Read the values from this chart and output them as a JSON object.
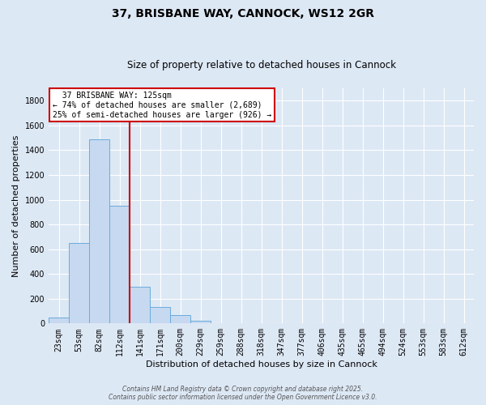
{
  "title": "37, BRISBANE WAY, CANNOCK, WS12 2GR",
  "subtitle": "Size of property relative to detached houses in Cannock",
  "xlabel": "Distribution of detached houses by size in Cannock",
  "ylabel": "Number of detached properties",
  "bar_labels": [
    "23sqm",
    "53sqm",
    "82sqm",
    "112sqm",
    "141sqm",
    "171sqm",
    "200sqm",
    "229sqm",
    "259sqm",
    "288sqm",
    "318sqm",
    "347sqm",
    "377sqm",
    "406sqm",
    "435sqm",
    "465sqm",
    "494sqm",
    "524sqm",
    "553sqm",
    "583sqm",
    "612sqm"
  ],
  "bar_values": [
    45,
    650,
    1490,
    950,
    295,
    135,
    65,
    20,
    5,
    2,
    0,
    0,
    0,
    0,
    0,
    0,
    0,
    0,
    0,
    0,
    0
  ],
  "bar_color": "#c6d9f0",
  "bar_edge_color": "#6aabdb",
  "vline_x": 3,
  "vline_color": "#cc0000",
  "annotation_title": "37 BRISBANE WAY: 125sqm",
  "annotation_line1": "← 74% of detached houses are smaller (2,689)",
  "annotation_line2": "25% of semi-detached houses are larger (926) →",
  "annotation_box_color": "#cc0000",
  "ylim": [
    0,
    1900
  ],
  "yticks": [
    0,
    200,
    400,
    600,
    800,
    1000,
    1200,
    1400,
    1600,
    1800
  ],
  "footer1": "Contains HM Land Registry data © Crown copyright and database right 2025.",
  "footer2": "Contains public sector information licensed under the Open Government Licence v3.0.",
  "bg_color": "#dde8f5",
  "plot_bg_color": "#dde8f5",
  "grid_color": "#ffffff",
  "title_fontsize": 10,
  "subtitle_fontsize": 8.5,
  "axis_label_fontsize": 8,
  "tick_fontsize": 7,
  "footer_fontsize": 5.5
}
